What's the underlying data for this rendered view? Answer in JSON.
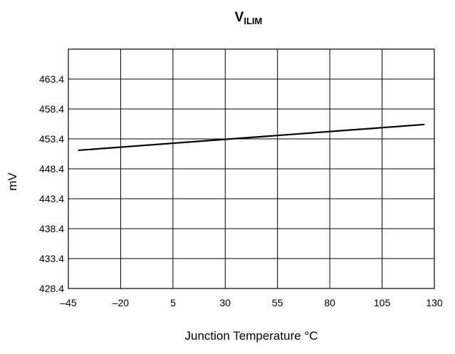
{
  "chart_data": {
    "type": "line",
    "title": {
      "main": "V",
      "subscript": "ILIM"
    },
    "xlabel": "Junction Temperature °C",
    "ylabel": "mV",
    "xlim": [
      -45,
      130
    ],
    "ylim": [
      428.4,
      468.4
    ],
    "x_ticks": [
      -45,
      -20,
      5,
      30,
      55,
      80,
      105,
      130
    ],
    "x_tick_labels": [
      "–45",
      "–20",
      "5",
      "30",
      "55",
      "80",
      "105",
      "130"
    ],
    "y_ticks": [
      428.4,
      433.4,
      438.4,
      443.4,
      448.4,
      453.4,
      458.4,
      463.4
    ],
    "y_tick_labels": [
      "428.4",
      "433.4",
      "438.4",
      "443.4",
      "448.4",
      "453.4",
      "458.4",
      "463.4"
    ],
    "grid": true,
    "series": [
      {
        "x": [
          -40,
          125
        ],
        "y": [
          451.5,
          455.8
        ]
      }
    ],
    "colors": {
      "line": "#000000",
      "grid": "#000000",
      "background": "#ffffff"
    }
  }
}
